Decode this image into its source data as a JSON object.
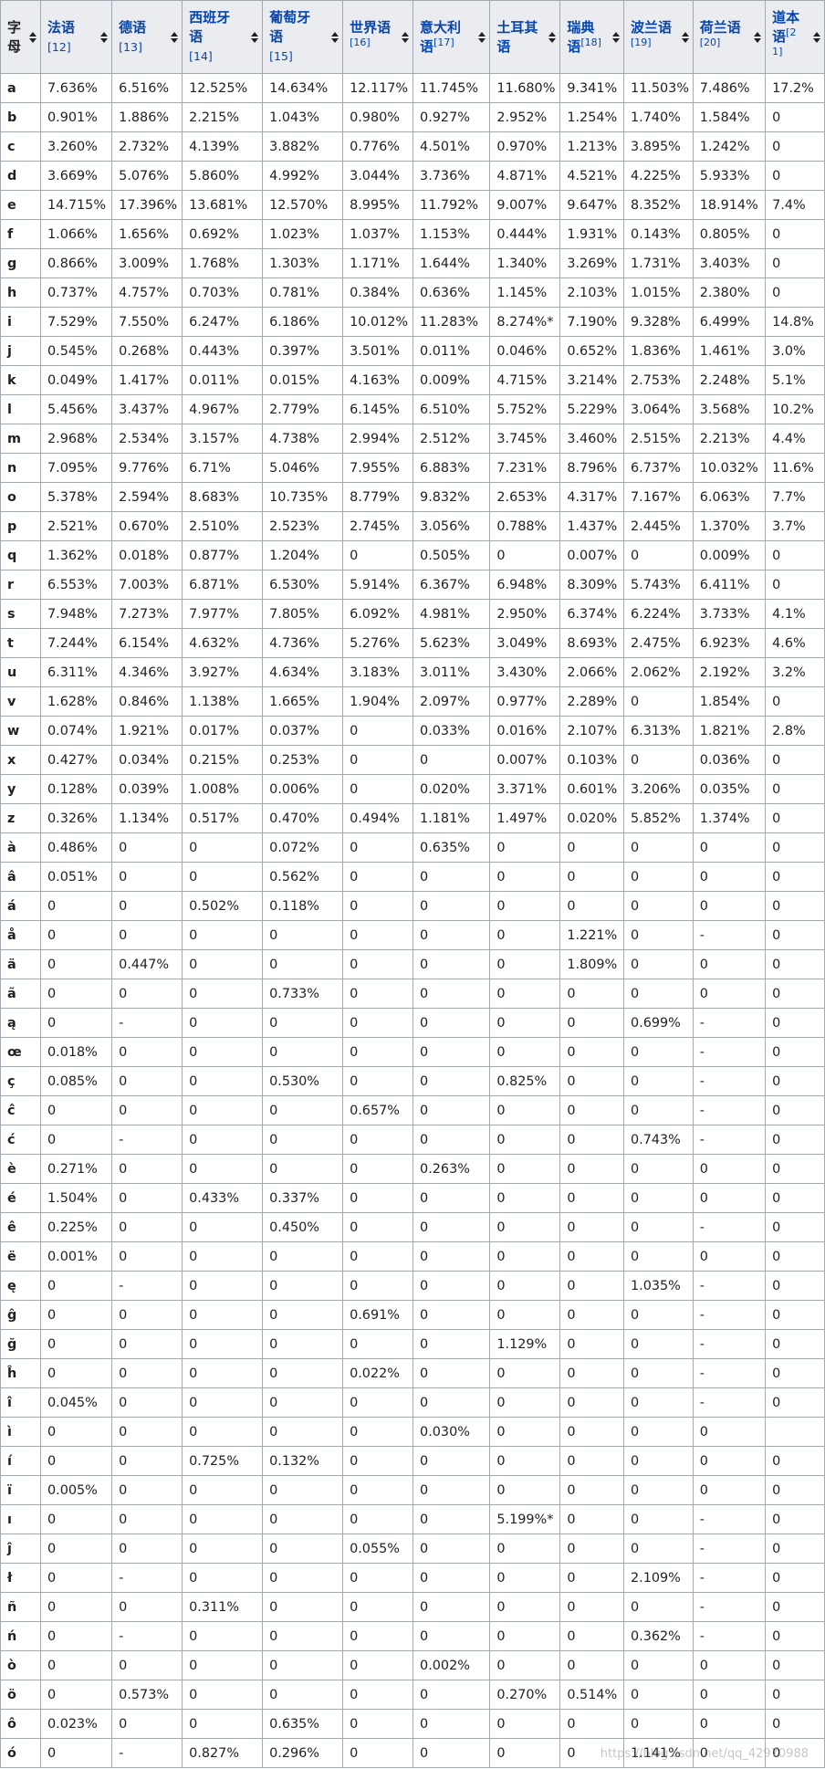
{
  "table": {
    "header": {
      "letter_col": "字母",
      "languages": [
        {
          "name": "法语",
          "ref": "[12]"
        },
        {
          "name": "德语",
          "ref": "[13]"
        },
        {
          "name": "西班牙语",
          "ref": "[14]"
        },
        {
          "name": "葡萄牙语",
          "ref": "[15]"
        },
        {
          "name": "世界语",
          "ref": "[16]"
        },
        {
          "name": "意大利语",
          "ref": "[17]"
        },
        {
          "name": "土耳其语",
          "ref": ""
        },
        {
          "name": "瑞典语",
          "ref": "[18]"
        },
        {
          "name": "波兰语",
          "ref": "[19]"
        },
        {
          "name": "荷兰语",
          "ref": "[20]"
        },
        {
          "name": "道本语",
          "ref": "[21]"
        }
      ]
    },
    "rows": [
      [
        "a",
        "7.636%",
        "6.516%",
        "12.525%",
        "14.634%",
        "12.117%",
        "11.745%",
        "11.680%",
        "9.341%",
        "11.503%",
        "7.486%",
        "17.2%"
      ],
      [
        "b",
        "0.901%",
        "1.886%",
        "2.215%",
        "1.043%",
        "0.980%",
        "0.927%",
        "2.952%",
        "1.254%",
        "1.740%",
        "1.584%",
        "0"
      ],
      [
        "c",
        "3.260%",
        "2.732%",
        "4.139%",
        "3.882%",
        "0.776%",
        "4.501%",
        "0.970%",
        "1.213%",
        "3.895%",
        "1.242%",
        "0"
      ],
      [
        "d",
        "3.669%",
        "5.076%",
        "5.860%",
        "4.992%",
        "3.044%",
        "3.736%",
        "4.871%",
        "4.521%",
        "4.225%",
        "5.933%",
        "0"
      ],
      [
        "e",
        "14.715%",
        "17.396%",
        "13.681%",
        "12.570%",
        "8.995%",
        "11.792%",
        "9.007%",
        "9.647%",
        "8.352%",
        "18.914%",
        "7.4%"
      ],
      [
        "f",
        "1.066%",
        "1.656%",
        "0.692%",
        "1.023%",
        "1.037%",
        "1.153%",
        "0.444%",
        "1.931%",
        "0.143%",
        "0.805%",
        "0"
      ],
      [
        "g",
        "0.866%",
        "3.009%",
        "1.768%",
        "1.303%",
        "1.171%",
        "1.644%",
        "1.340%",
        "3.269%",
        "1.731%",
        "3.403%",
        "0"
      ],
      [
        "h",
        "0.737%",
        "4.757%",
        "0.703%",
        "0.781%",
        "0.384%",
        "0.636%",
        "1.145%",
        "2.103%",
        "1.015%",
        "2.380%",
        "0"
      ],
      [
        "i",
        "7.529%",
        "7.550%",
        "6.247%",
        "6.186%",
        "10.012%",
        "11.283%",
        "8.274%*",
        "7.190%",
        "9.328%",
        "6.499%",
        "14.8%"
      ],
      [
        "j",
        "0.545%",
        "0.268%",
        "0.443%",
        "0.397%",
        "3.501%",
        "0.011%",
        "0.046%",
        "0.652%",
        "1.836%",
        "1.461%",
        "3.0%"
      ],
      [
        "k",
        "0.049%",
        "1.417%",
        "0.011%",
        "0.015%",
        "4.163%",
        "0.009%",
        "4.715%",
        "3.214%",
        "2.753%",
        "2.248%",
        "5.1%"
      ],
      [
        "l",
        "5.456%",
        "3.437%",
        "4.967%",
        "2.779%",
        "6.145%",
        "6.510%",
        "5.752%",
        "5.229%",
        "3.064%",
        "3.568%",
        "10.2%"
      ],
      [
        "m",
        "2.968%",
        "2.534%",
        "3.157%",
        "4.738%",
        "2.994%",
        "2.512%",
        "3.745%",
        "3.460%",
        "2.515%",
        "2.213%",
        "4.4%"
      ],
      [
        "n",
        "7.095%",
        "9.776%",
        "6.71%",
        "5.046%",
        "7.955%",
        "6.883%",
        "7.231%",
        "8.796%",
        "6.737%",
        "10.032%",
        "11.6%"
      ],
      [
        "o",
        "5.378%",
        "2.594%",
        "8.683%",
        "10.735%",
        "8.779%",
        "9.832%",
        "2.653%",
        "4.317%",
        "7.167%",
        "6.063%",
        "7.7%"
      ],
      [
        "p",
        "2.521%",
        "0.670%",
        "2.510%",
        "2.523%",
        "2.745%",
        "3.056%",
        "0.788%",
        "1.437%",
        "2.445%",
        "1.370%",
        "3.7%"
      ],
      [
        "q",
        "1.362%",
        "0.018%",
        "0.877%",
        "1.204%",
        "0",
        "0.505%",
        "0",
        "0.007%",
        "0",
        "0.009%",
        "0"
      ],
      [
        "r",
        "6.553%",
        "7.003%",
        "6.871%",
        "6.530%",
        "5.914%",
        "6.367%",
        "6.948%",
        "8.309%",
        "5.743%",
        "6.411%",
        "0"
      ],
      [
        "s",
        "7.948%",
        "7.273%",
        "7.977%",
        "7.805%",
        "6.092%",
        "4.981%",
        "2.950%",
        "6.374%",
        "6.224%",
        "3.733%",
        "4.1%"
      ],
      [
        "t",
        "7.244%",
        "6.154%",
        "4.632%",
        "4.736%",
        "5.276%",
        "5.623%",
        "3.049%",
        "8.693%",
        "2.475%",
        "6.923%",
        "4.6%"
      ],
      [
        "u",
        "6.311%",
        "4.346%",
        "3.927%",
        "4.634%",
        "3.183%",
        "3.011%",
        "3.430%",
        "2.066%",
        "2.062%",
        "2.192%",
        "3.2%"
      ],
      [
        "v",
        "1.628%",
        "0.846%",
        "1.138%",
        "1.665%",
        "1.904%",
        "2.097%",
        "0.977%",
        "2.289%",
        "0",
        "1.854%",
        "0"
      ],
      [
        "w",
        "0.074%",
        "1.921%",
        "0.017%",
        "0.037%",
        "0",
        "0.033%",
        "0.016%",
        "2.107%",
        "6.313%",
        "1.821%",
        "2.8%"
      ],
      [
        "x",
        "0.427%",
        "0.034%",
        "0.215%",
        "0.253%",
        "0",
        "0",
        "0.007%",
        "0.103%",
        "0",
        "0.036%",
        "0"
      ],
      [
        "y",
        "0.128%",
        "0.039%",
        "1.008%",
        "0.006%",
        "0",
        "0.020%",
        "3.371%",
        "0.601%",
        "3.206%",
        "0.035%",
        "0"
      ],
      [
        "z",
        "0.326%",
        "1.134%",
        "0.517%",
        "0.470%",
        "0.494%",
        "1.181%",
        "1.497%",
        "0.020%",
        "5.852%",
        "1.374%",
        "0"
      ],
      [
        "à",
        "0.486%",
        "0",
        "0",
        "0.072%",
        "0",
        "0.635%",
        "0",
        "0",
        "0",
        "0",
        "0"
      ],
      [
        "â",
        "0.051%",
        "0",
        "0",
        "0.562%",
        "0",
        "0",
        "0",
        "0",
        "0",
        "0",
        "0"
      ],
      [
        "á",
        "0",
        "0",
        "0.502%",
        "0.118%",
        "0",
        "0",
        "0",
        "0",
        "0",
        "0",
        "0"
      ],
      [
        "å",
        "0",
        "0",
        "0",
        "0",
        "0",
        "0",
        "0",
        "1.221%",
        "0",
        "-",
        "0"
      ],
      [
        "ä",
        "0",
        "0.447%",
        "0",
        "0",
        "0",
        "0",
        "0",
        "1.809%",
        "0",
        "0",
        "0"
      ],
      [
        "ã",
        "0",
        "0",
        "0",
        "0.733%",
        "0",
        "0",
        "0",
        "0",
        "0",
        "0",
        "0"
      ],
      [
        "ą",
        "0",
        "-",
        "0",
        "0",
        "0",
        "0",
        "0",
        "0",
        "0.699%",
        "-",
        "0"
      ],
      [
        "œ",
        "0.018%",
        "0",
        "0",
        "0",
        "0",
        "0",
        "0",
        "0",
        "0",
        "-",
        "0"
      ],
      [
        "ç",
        "0.085%",
        "0",
        "0",
        "0.530%",
        "0",
        "0",
        "0.825%",
        "0",
        "0",
        "-",
        "0"
      ],
      [
        "ĉ",
        "0",
        "0",
        "0",
        "0",
        "0.657%",
        "0",
        "0",
        "0",
        "0",
        "-",
        "0"
      ],
      [
        "ć",
        "0",
        "-",
        "0",
        "0",
        "0",
        "0",
        "0",
        "0",
        "0.743%",
        "-",
        "0"
      ],
      [
        "è",
        "0.271%",
        "0",
        "0",
        "0",
        "0",
        "0.263%",
        "0",
        "0",
        "0",
        "0",
        "0"
      ],
      [
        "é",
        "1.504%",
        "0",
        "0.433%",
        "0.337%",
        "0",
        "0",
        "0",
        "0",
        "0",
        "0",
        "0"
      ],
      [
        "ê",
        "0.225%",
        "0",
        "0",
        "0.450%",
        "0",
        "0",
        "0",
        "0",
        "0",
        "-",
        "0"
      ],
      [
        "ë",
        "0.001%",
        "0",
        "0",
        "0",
        "0",
        "0",
        "0",
        "0",
        "0",
        "0",
        "0"
      ],
      [
        "ę",
        "0",
        "-",
        "0",
        "0",
        "0",
        "0",
        "0",
        "0",
        "1.035%",
        "-",
        "0"
      ],
      [
        "ĝ",
        "0",
        "0",
        "0",
        "0",
        "0.691%",
        "0",
        "0",
        "0",
        "0",
        "-",
        "0"
      ],
      [
        "ğ",
        "0",
        "0",
        "0",
        "0",
        "0",
        "0",
        "1.129%",
        "0",
        "0",
        "-",
        "0"
      ],
      [
        "ĥ",
        "0",
        "0",
        "0",
        "0",
        "0.022%",
        "0",
        "0",
        "0",
        "0",
        "-",
        "0"
      ],
      [
        "î",
        "0.045%",
        "0",
        "0",
        "0",
        "0",
        "0",
        "0",
        "0",
        "0",
        "-",
        "0"
      ],
      [
        "ì",
        "0",
        "0",
        "0",
        "0",
        "0",
        "0.030%",
        "0",
        "0",
        "0",
        "0",
        ""
      ],
      [
        "í",
        "0",
        "0",
        "0.725%",
        "0.132%",
        "0",
        "0",
        "0",
        "0",
        "0",
        "0",
        "0"
      ],
      [
        "ï",
        "0.005%",
        "0",
        "0",
        "0",
        "0",
        "0",
        "0",
        "0",
        "0",
        "0",
        "0"
      ],
      [
        "ı",
        "0",
        "0",
        "0",
        "0",
        "0",
        "0",
        "5.199%*",
        "0",
        "0",
        "-",
        "0"
      ],
      [
        "ĵ",
        "0",
        "0",
        "0",
        "0",
        "0.055%",
        "0",
        "0",
        "0",
        "0",
        "-",
        "0"
      ],
      [
        "ł",
        "0",
        "-",
        "0",
        "0",
        "0",
        "0",
        "0",
        "0",
        "2.109%",
        "-",
        "0"
      ],
      [
        "ñ",
        "0",
        "0",
        "0.311%",
        "0",
        "0",
        "0",
        "0",
        "0",
        "0",
        "-",
        "0"
      ],
      [
        "ń",
        "0",
        "-",
        "0",
        "0",
        "0",
        "0",
        "0",
        "0",
        "0.362%",
        "-",
        "0"
      ],
      [
        "ò",
        "0",
        "0",
        "0",
        "0",
        "0",
        "0.002%",
        "0",
        "0",
        "0",
        "0",
        "0"
      ],
      [
        "ö",
        "0",
        "0.573%",
        "0",
        "0",
        "0",
        "0",
        "0.270%",
        "0.514%",
        "0",
        "0",
        "0"
      ],
      [
        "ô",
        "0.023%",
        "0",
        "0",
        "0.635%",
        "0",
        "0",
        "0",
        "0",
        "0",
        "0",
        "0"
      ],
      [
        "ó",
        "0",
        "-",
        "0.827%",
        "0.296%",
        "0",
        "0",
        "0",
        "0",
        "1.141%",
        "0",
        "0"
      ]
    ]
  },
  "watermark": "https://blog.csdn.net/qq_42970988"
}
